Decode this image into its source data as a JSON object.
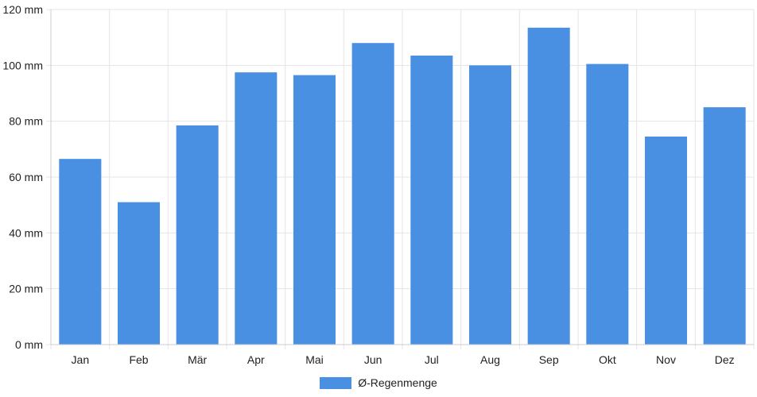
{
  "chart_data": {
    "type": "bar",
    "categories": [
      "Jan",
      "Feb",
      "Mär",
      "Apr",
      "Mai",
      "Jun",
      "Jul",
      "Aug",
      "Sep",
      "Okt",
      "Nov",
      "Dez"
    ],
    "series": [
      {
        "name": "Ø-Regenmenge",
        "values": [
          66.5,
          51,
          78.5,
          97.5,
          96.5,
          108,
          103.5,
          100,
          113.5,
          100.5,
          74.5,
          85
        ]
      }
    ],
    "y_ticks": [
      "0 mm",
      "20 mm",
      "40 mm",
      "60 mm",
      "80 mm",
      "100 mm",
      "120 mm"
    ],
    "ylim": [
      0,
      120
    ],
    "grid": true,
    "legend_position": "bottom",
    "colors": {
      "bar": "#4a90e2",
      "grid": "#e5e5e5",
      "axis": "#cccccc"
    }
  },
  "legend": {
    "label": "Ø-Regenmenge"
  }
}
